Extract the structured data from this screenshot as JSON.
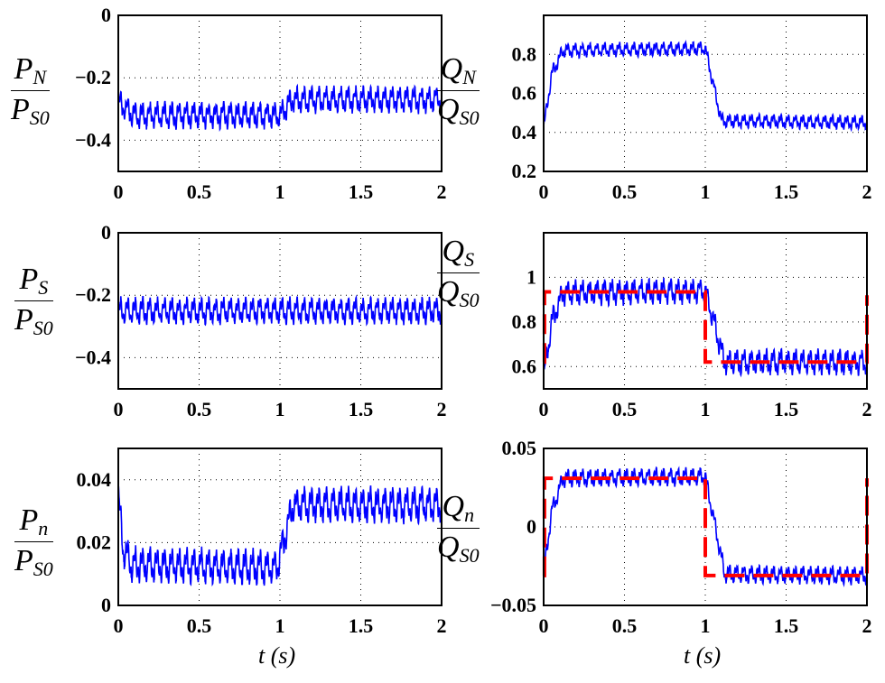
{
  "chart_data": [
    {
      "type": "line",
      "ylabel": {
        "main": "P",
        "sub": "N",
        "den_main": "P",
        "den_sub": "S0"
      },
      "xlim": [
        0,
        2
      ],
      "ylim": [
        -0.5,
        0
      ],
      "xticks": [
        "0",
        "0.5",
        "1",
        "1.5",
        "2"
      ],
      "yticks": [
        "0",
        "−0.2",
        "−0.4"
      ],
      "ytick_values": [
        0,
        -0.2,
        -0.4
      ],
      "grid": true,
      "series": [
        {
          "color": "#0000ff",
          "x": [
            0,
            0.1,
            1.0,
            1.08,
            2
          ],
          "values": [
            -0.28,
            -0.32,
            -0.32,
            -0.27,
            -0.27
          ],
          "oscillation_amplitude": 0.03
        }
      ]
    },
    {
      "type": "line",
      "ylabel": {
        "main": "Q",
        "sub": "N",
        "den_main": "Q",
        "den_sub": "S0"
      },
      "xlim": [
        0,
        2
      ],
      "ylim": [
        0.2,
        1.0
      ],
      "xticks": [
        "0",
        "0.5",
        "1",
        "1.5",
        "2"
      ],
      "yticks": [
        "0.8",
        "0.6",
        "0.4",
        "0.2"
      ],
      "ytick_values": [
        0.8,
        0.6,
        0.4,
        0.2
      ],
      "grid": true,
      "series": [
        {
          "color": "#0000ff",
          "x": [
            0,
            0.05,
            0.12,
            1.0,
            1.1,
            2
          ],
          "values": [
            0.42,
            0.7,
            0.82,
            0.83,
            0.46,
            0.45
          ],
          "oscillation_amplitude": 0.025
        }
      ]
    },
    {
      "type": "line",
      "ylabel": {
        "main": "P",
        "sub": "S",
        "den_main": "P",
        "den_sub": "S0"
      },
      "xlim": [
        0,
        2
      ],
      "ylim": [
        -0.5,
        0
      ],
      "xticks": [
        "0",
        "0.5",
        "1",
        "1.5",
        "2"
      ],
      "yticks": [
        "0",
        "−0.2",
        "−0.4"
      ],
      "ytick_values": [
        0,
        -0.2,
        -0.4
      ],
      "grid": true,
      "series": [
        {
          "color": "#0000ff",
          "x": [
            0,
            2
          ],
          "values": [
            -0.25,
            -0.25
          ],
          "oscillation_amplitude": 0.03
        }
      ]
    },
    {
      "type": "line",
      "ylabel": {
        "main": "Q",
        "sub": "S",
        "den_main": "Q",
        "den_sub": "S0"
      },
      "xlim": [
        0,
        2
      ],
      "ylim": [
        0.5,
        1.2
      ],
      "xticks": [
        "0",
        "0.5",
        "1",
        "1.5",
        "2"
      ],
      "yticks": [
        "1",
        "0.8",
        "0.6"
      ],
      "ytick_values": [
        1,
        0.8,
        0.6
      ],
      "grid": true,
      "series": [
        {
          "color": "#0000ff",
          "x": [
            0,
            0.05,
            0.12,
            1.0,
            1.12,
            2
          ],
          "values": [
            0.55,
            0.8,
            0.93,
            0.94,
            0.62,
            0.62
          ],
          "oscillation_amplitude": 0.04
        },
        {
          "color": "#ff0000",
          "dashed": true,
          "x": [
            0,
            0.005,
            0.005,
            1.0,
            1.0,
            2.0,
            2.0
          ],
          "values": [
            0.62,
            0.62,
            0.935,
            0.935,
            0.62,
            0.62,
            0.92
          ]
        }
      ]
    },
    {
      "type": "line",
      "ylabel": {
        "main": "P",
        "sub": "n",
        "den_main": "P",
        "den_sub": "S0"
      },
      "xlim": [
        0,
        2
      ],
      "ylim": [
        0,
        0.05
      ],
      "xticks": [
        "0",
        "0.5",
        "1",
        "1.5",
        "2"
      ],
      "yticks": [
        "0.04",
        "0.02",
        "0"
      ],
      "ytick_values": [
        0.04,
        0.02,
        0
      ],
      "grid": true,
      "series": [
        {
          "color": "#0000ff",
          "x": [
            0,
            0.03,
            0.08,
            0.98,
            1.08,
            2
          ],
          "values": [
            0.035,
            0.018,
            0.013,
            0.012,
            0.032,
            0.032
          ],
          "oscillation_amplitude": 0.004
        }
      ]
    },
    {
      "type": "line",
      "ylabel": {
        "main": "Q",
        "sub": "n",
        "den_main": "Q",
        "den_sub": "S0"
      },
      "xlim": [
        0,
        2
      ],
      "ylim": [
        -0.05,
        0.05
      ],
      "xticks": [
        "0",
        "0.5",
        "1",
        "1.5",
        "2"
      ],
      "yticks": [
        "0.05",
        "0",
        "−0.05"
      ],
      "ytick_values": [
        0.05,
        0,
        -0.05
      ],
      "grid": true,
      "series": [
        {
          "color": "#0000ff",
          "x": [
            0,
            0.05,
            0.12,
            1.0,
            1.12,
            2
          ],
          "values": [
            -0.03,
            0.01,
            0.031,
            0.032,
            -0.03,
            -0.031
          ],
          "oscillation_amplitude": 0.004
        },
        {
          "color": "#ff0000",
          "dashed": true,
          "x": [
            0,
            0.005,
            0.005,
            1.0,
            1.0,
            2.0,
            2.0
          ],
          "values": [
            -0.031,
            -0.031,
            0.031,
            0.031,
            -0.031,
            -0.031,
            0.031
          ]
        }
      ]
    }
  ],
  "xlabel": {
    "main": "t",
    "unit": "(s)"
  }
}
